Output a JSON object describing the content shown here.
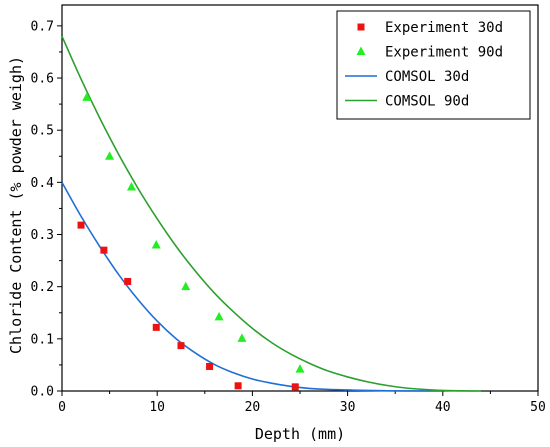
{
  "chart_data": {
    "type": "scatter",
    "xlabel": "Depth (mm)",
    "ylabel": "Chloride Content (% powder weigh)",
    "xlim": [
      0,
      50
    ],
    "ylim": [
      0,
      0.74
    ],
    "xticks": [
      0,
      10,
      20,
      30,
      40,
      50
    ],
    "yticks": [
      0.0,
      0.1,
      0.2,
      0.3,
      0.4,
      0.5,
      0.6,
      0.7
    ],
    "xtick_labels": [
      "0",
      "10",
      "20",
      "30",
      "40",
      "50"
    ],
    "ytick_labels": [
      "0.0",
      "0.1",
      "0.2",
      "0.3",
      "0.4",
      "0.5",
      "0.6",
      "0.7"
    ],
    "grid": false,
    "legend_position": "top-right",
    "series": [
      {
        "name": "Experiment 30d",
        "kind": "scatter",
        "marker": "square",
        "color": "#ee1111",
        "x": [
          2.0,
          4.4,
          6.9,
          9.9,
          12.5,
          15.5,
          18.5,
          24.5
        ],
        "y": [
          0.318,
          0.27,
          0.21,
          0.122,
          0.087,
          0.047,
          0.01,
          0.008
        ]
      },
      {
        "name": "Experiment 90d",
        "kind": "scatter",
        "marker": "triangle",
        "color": "#22ee22",
        "x": [
          2.6,
          5.0,
          7.3,
          9.9,
          13.0,
          16.5,
          18.9,
          25.0
        ],
        "y": [
          0.563,
          0.45,
          0.391,
          0.28,
          0.2,
          0.142,
          0.101,
          0.042
        ]
      },
      {
        "name": "COMSOL 30d",
        "kind": "line",
        "color": "#1f6fd6",
        "x": [
          0,
          2,
          4,
          6,
          8,
          10,
          12,
          14,
          16,
          18,
          20,
          22,
          24,
          26,
          28,
          30,
          32,
          34,
          36,
          38,
          40
        ],
        "y": [
          0.4,
          0.335,
          0.276,
          0.222,
          0.175,
          0.134,
          0.1,
          0.073,
          0.051,
          0.035,
          0.023,
          0.015,
          0.009,
          0.005,
          0.003,
          0.002,
          0.001,
          0.0005,
          0.0002,
          0.0001,
          0.0
        ]
      },
      {
        "name": "COMSOL 90d",
        "kind": "line",
        "color": "#2ca02c",
        "x": [
          0,
          2,
          4,
          6,
          8,
          10,
          12,
          14,
          16,
          18,
          20,
          22,
          24,
          26,
          28,
          30,
          32,
          34,
          36,
          38,
          40,
          42,
          44
        ],
        "y": [
          0.68,
          0.598,
          0.522,
          0.452,
          0.388,
          0.33,
          0.277,
          0.23,
          0.188,
          0.152,
          0.12,
          0.093,
          0.071,
          0.053,
          0.038,
          0.027,
          0.018,
          0.011,
          0.006,
          0.003,
          0.001,
          0.0003,
          0.0
        ]
      }
    ]
  }
}
